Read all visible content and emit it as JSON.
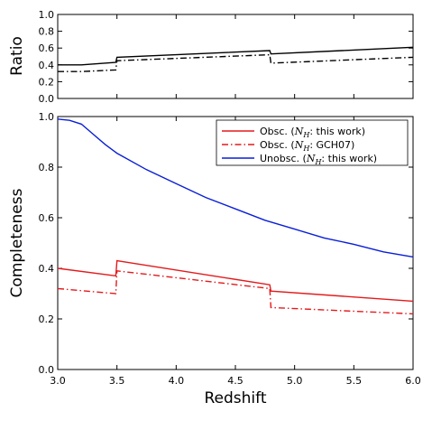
{
  "chart_data": [
    {
      "type": "line",
      "panel": "top",
      "xlabel": "",
      "ylabel": "Ratio",
      "xlim": [
        3.0,
        6.0
      ],
      "ylim": [
        0.0,
        1.0
      ],
      "yticks": [
        "0.0",
        "0.2",
        "0.4",
        "0.6",
        "0.8",
        "1.0"
      ],
      "series": [
        {
          "style": "solid",
          "color": "#000000",
          "x": [
            3.0,
            3.2,
            3.49,
            3.5,
            4.79,
            4.8,
            6.0
          ],
          "y": [
            0.4,
            0.4,
            0.43,
            0.49,
            0.57,
            0.53,
            0.61
          ]
        },
        {
          "style": "dashdot",
          "color": "#000000",
          "x": [
            3.0,
            3.2,
            3.49,
            3.5,
            4.79,
            4.8,
            6.0
          ],
          "y": [
            0.32,
            0.32,
            0.34,
            0.45,
            0.52,
            0.42,
            0.49
          ]
        }
      ]
    },
    {
      "type": "line",
      "panel": "bottom",
      "xlabel": "Redshift",
      "ylabel": "Completeness",
      "xlim": [
        3.0,
        6.0
      ],
      "ylim": [
        0.0,
        1.0
      ],
      "xticks": [
        "3.0",
        "3.5",
        "4.0",
        "4.5",
        "5.0",
        "5.5",
        "6.0"
      ],
      "yticks": [
        "0.0",
        "0.2",
        "0.4",
        "0.6",
        "0.8",
        "1.0"
      ],
      "legend_position": "top-right",
      "series": [
        {
          "name_prefix": "Obsc. (",
          "name_math": "N",
          "name_sub": "H",
          "name_suffix": ": this work)",
          "style": "solid",
          "color": "#e31a1c",
          "x": [
            3.0,
            3.49,
            3.5,
            4.79,
            4.8,
            6.0
          ],
          "y": [
            0.4,
            0.37,
            0.43,
            0.335,
            0.31,
            0.27
          ]
        },
        {
          "name_prefix": "Obsc. (",
          "name_math": "N",
          "name_sub": "H",
          "name_suffix": ": GCH07)",
          "style": "dashdot",
          "color": "#e31a1c",
          "x": [
            3.0,
            3.49,
            3.5,
            4.79,
            4.8,
            6.0
          ],
          "y": [
            0.32,
            0.3,
            0.39,
            0.32,
            0.245,
            0.22
          ]
        },
        {
          "name_prefix": "Unobsc. (",
          "name_math": "N",
          "name_sub": "H",
          "name_suffix": ": this work)",
          "style": "solid",
          "color": "#0a1fd6",
          "x": [
            3.0,
            3.1,
            3.2,
            3.3,
            3.4,
            3.5,
            3.75,
            4.0,
            4.25,
            4.5,
            4.75,
            5.0,
            5.25,
            5.5,
            5.75,
            6.0
          ],
          "y": [
            0.99,
            0.985,
            0.97,
            0.93,
            0.89,
            0.855,
            0.79,
            0.735,
            0.68,
            0.635,
            0.59,
            0.555,
            0.52,
            0.495,
            0.465,
            0.445
          ]
        }
      ]
    }
  ]
}
